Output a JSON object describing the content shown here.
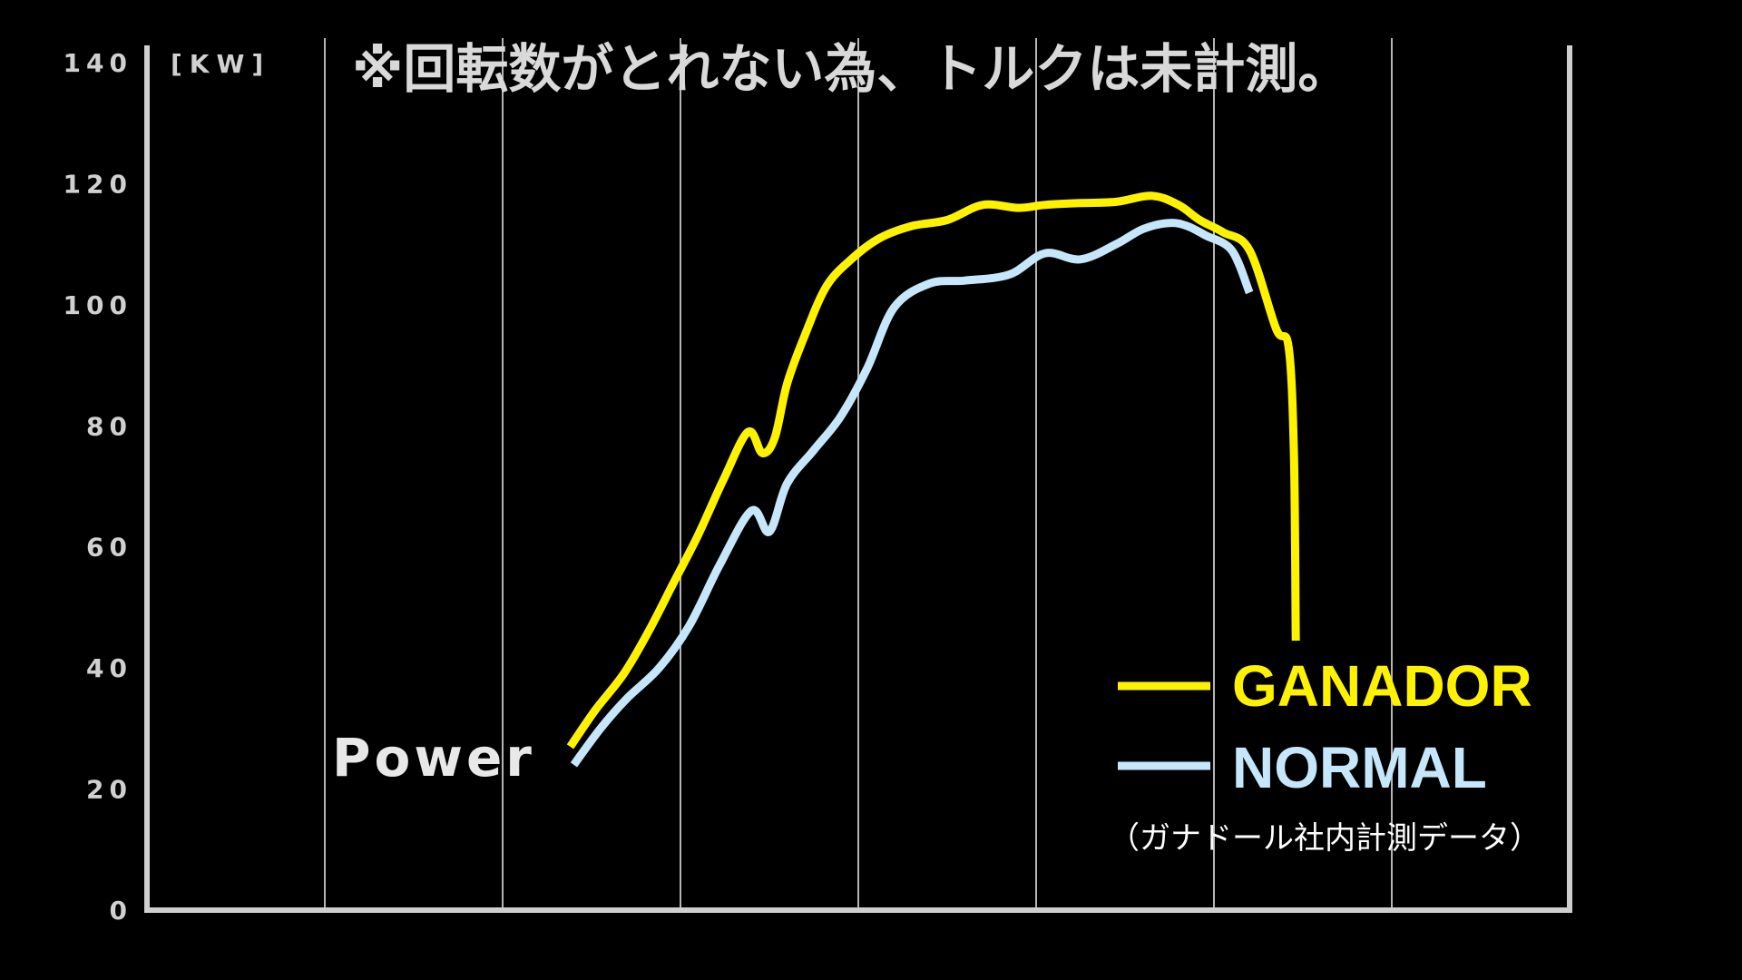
{
  "chart_data": {
    "type": "line",
    "title": "※回転数がとれない為、トルクは未計測。",
    "ylabel_unit": "[KW]",
    "series_label": "Power",
    "source_note": "（ガナドール社内計測データ）",
    "ylim": [
      0,
      140
    ],
    "y_ticks": [
      0,
      20,
      40,
      60,
      80,
      100,
      120,
      140
    ],
    "xlim": [
      0,
      8
    ],
    "x_gridlines": [
      1,
      2,
      3,
      4,
      5,
      6,
      7
    ],
    "grid": true,
    "legend_position": "bottom-right",
    "series": [
      {
        "name": "GANADOR",
        "color": "#fff200",
        "x": [
          2.38,
          2.52,
          2.68,
          2.82,
          2.96,
          3.1,
          3.24,
          3.38,
          3.46,
          3.53,
          3.6,
          3.7,
          3.82,
          3.96,
          4.12,
          4.3,
          4.5,
          4.7,
          4.9,
          5.05,
          5.25,
          5.45,
          5.65,
          5.8,
          5.92,
          6.05,
          6.2,
          6.35,
          6.42,
          6.45,
          6.46
        ],
        "values": [
          27,
          33,
          39,
          46,
          54,
          62,
          71,
          79,
          75.5,
          78,
          87,
          95,
          103,
          107.5,
          111,
          113,
          114,
          116.5,
          116,
          116.5,
          116.8,
          117,
          118,
          116.5,
          114,
          112,
          109,
          96,
          93,
          75,
          44.5
        ]
      },
      {
        "name": "NORMAL",
        "color": "#c5e6fb",
        "x": [
          2.4,
          2.55,
          2.7,
          2.88,
          3.05,
          3.22,
          3.4,
          3.5,
          3.6,
          3.75,
          3.9,
          4.05,
          4.2,
          4.4,
          4.6,
          4.85,
          5.05,
          5.25,
          5.45,
          5.6,
          5.75,
          5.85,
          5.95,
          6.1,
          6.2
        ],
        "values": [
          24,
          30,
          35,
          40,
          47,
          57,
          66,
          62.5,
          70.5,
          76,
          81.5,
          89.5,
          99.5,
          103.5,
          104,
          105,
          108.5,
          107.5,
          110,
          112.5,
          113.5,
          113,
          111.5,
          109,
          102
        ]
      }
    ]
  },
  "legend": {
    "ganador_label": "GANADOR",
    "normal_label": "NORMAL"
  }
}
